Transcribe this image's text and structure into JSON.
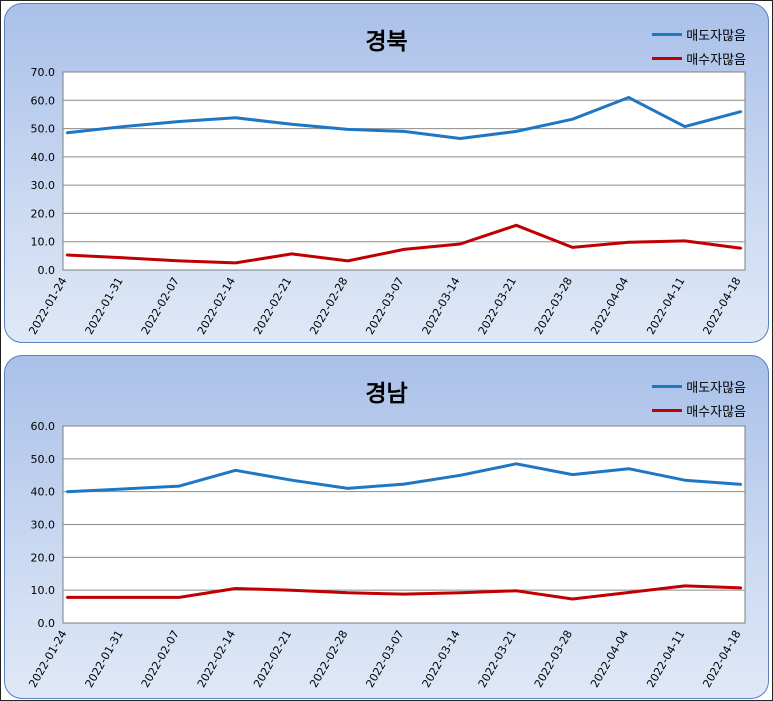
{
  "chart_data": [
    {
      "type": "line",
      "title": "경북",
      "categories": [
        "2022-01-24",
        "2022-01-31",
        "2022-02-07",
        "2022-02-14",
        "2022-02-21",
        "2022-02-28",
        "2022-03-07",
        "2022-03-14",
        "2022-03-21",
        "2022-03-28",
        "2022-04-04",
        "2022-04-11",
        "2022-04-18"
      ],
      "series": [
        {
          "name": "매도자많음",
          "color": "#1f77c4",
          "values": [
            48.5,
            50.7,
            52.5,
            53.8,
            51.5,
            49.7,
            49.0,
            46.5,
            49.0,
            53.3,
            61.0,
            50.7,
            56.0
          ]
        },
        {
          "name": "매수자많음",
          "color": "#c00000",
          "values": [
            5.3,
            4.3,
            3.2,
            2.5,
            5.7,
            3.2,
            7.3,
            9.2,
            15.8,
            8.0,
            9.8,
            10.3,
            7.7
          ]
        }
      ],
      "ylim": [
        0,
        70
      ],
      "yticks": [
        "0.0",
        "10.0",
        "20.0",
        "30.0",
        "40.0",
        "50.0",
        "60.0",
        "70.0"
      ],
      "grid": true,
      "legend": "top-right"
    },
    {
      "type": "line",
      "title": "경남",
      "categories": [
        "2022-01-24",
        "2022-01-31",
        "2022-02-07",
        "2022-02-14",
        "2022-02-21",
        "2022-02-28",
        "2022-03-07",
        "2022-03-14",
        "2022-03-21",
        "2022-03-28",
        "2022-04-04",
        "2022-04-11",
        "2022-04-18"
      ],
      "series": [
        {
          "name": "매도자많음",
          "color": "#1f77c4",
          "values": [
            40.0,
            40.8,
            41.7,
            46.5,
            43.5,
            41.0,
            42.3,
            45.0,
            48.5,
            45.2,
            47.0,
            43.5,
            42.2
          ]
        },
        {
          "name": "매수자많음",
          "color": "#c00000",
          "values": [
            7.8,
            7.8,
            7.8,
            10.5,
            10.0,
            9.2,
            8.8,
            9.2,
            9.8,
            7.3,
            9.3,
            11.3,
            10.7
          ]
        }
      ],
      "ylim": [
        0,
        60
      ],
      "yticks": [
        "0.0",
        "10.0",
        "20.0",
        "30.0",
        "40.0",
        "50.0",
        "60.0"
      ],
      "grid": true,
      "legend": "top-right"
    }
  ]
}
